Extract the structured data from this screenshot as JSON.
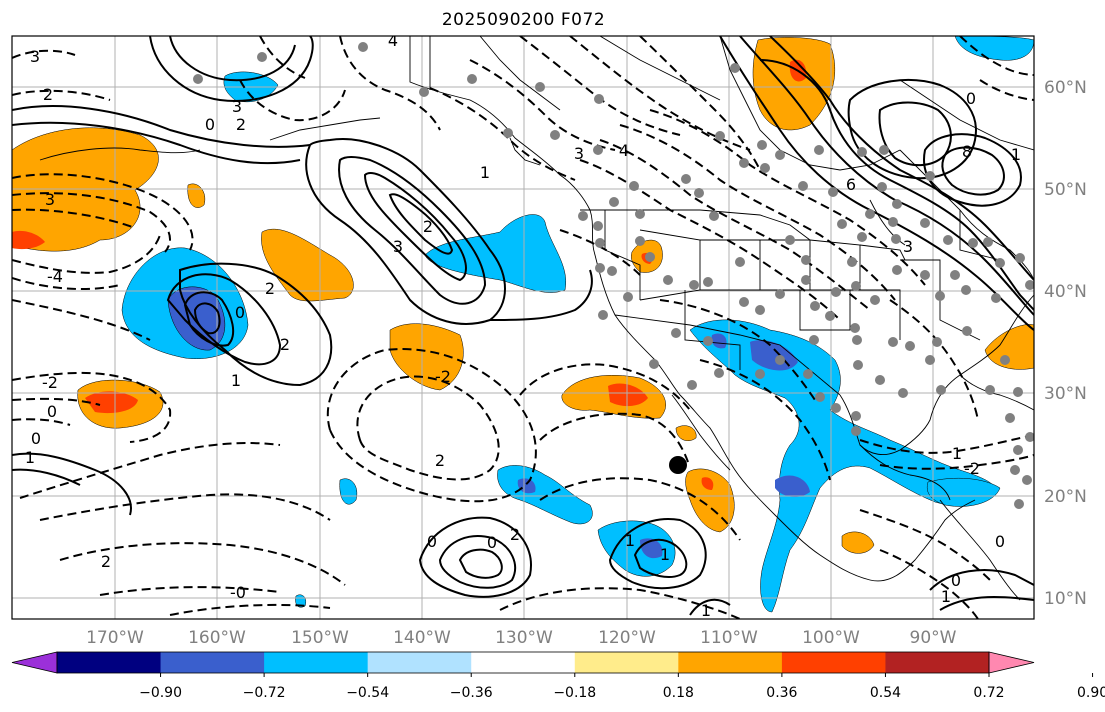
{
  "title": "2025090200 F072",
  "x_ticks": [
    "170°W",
    "160°W",
    "150°W",
    "140°W",
    "130°W",
    "120°W",
    "110°W",
    "100°W",
    "90°W"
  ],
  "y_ticks": [
    "60°N",
    "50°N",
    "40°N",
    "30°N",
    "20°N",
    "10°N"
  ],
  "colorbar": {
    "labels": [
      "−0.90",
      "−0.72",
      "−0.54",
      "−0.36",
      "−0.18",
      "0.18",
      "0.36",
      "0.54",
      "0.72",
      "0.90"
    ],
    "colors": [
      "#9b30d9",
      "#000080",
      "#3a5fcd",
      "#00bfff",
      "#b0e2ff",
      "#ffffff",
      "#ffec8b",
      "#ffa500",
      "#ff4000",
      "#b22222",
      "#ff88b0"
    ]
  },
  "contour_labels": [
    "3",
    "2",
    "3",
    "4",
    "2",
    "0",
    "1",
    "3",
    "4",
    "1",
    "3",
    "2",
    "3",
    "0",
    "8",
    "6",
    "3",
    "-4",
    "2",
    "0",
    "2",
    "1",
    "-2",
    "0",
    "0",
    "1",
    "2",
    "-2",
    "1",
    "2",
    "0",
    "0",
    "-0",
    "2",
    "1",
    "1",
    "1",
    "-2",
    "0",
    "0",
    "1"
  ],
  "marker": {
    "name": "black-dot"
  }
}
